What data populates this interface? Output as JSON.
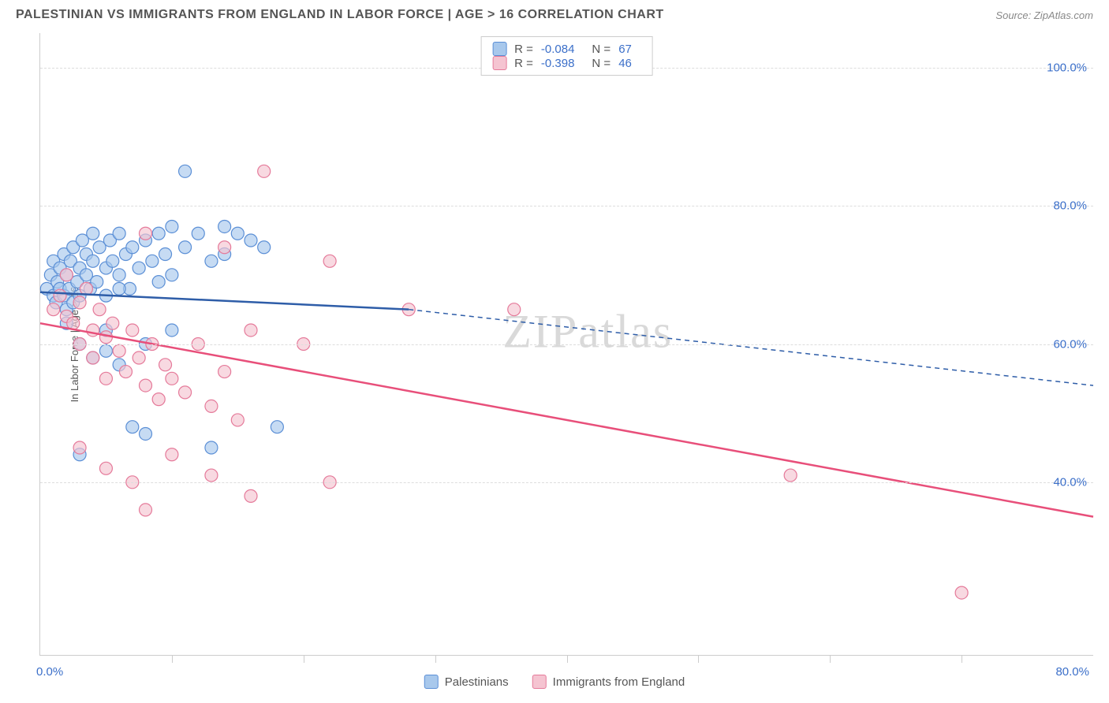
{
  "header": {
    "title": "PALESTINIAN VS IMMIGRANTS FROM ENGLAND IN LABOR FORCE | AGE > 16 CORRELATION CHART",
    "source_label": "Source:",
    "source_name": "ZipAtlas.com"
  },
  "chart": {
    "type": "scatter",
    "y_axis_title": "In Labor Force | Age > 16",
    "xlim": [
      0,
      80
    ],
    "ylim": [
      15,
      105
    ],
    "x_label_min": "0.0%",
    "x_label_max": "80.0%",
    "y_ticks": [
      40,
      60,
      80,
      100
    ],
    "y_tick_labels": [
      "40.0%",
      "60.0%",
      "80.0%",
      "100.0%"
    ],
    "x_ticks": [
      10,
      20,
      30,
      40,
      50,
      60,
      70
    ],
    "background_color": "#ffffff",
    "grid_color": "#dddddd",
    "axis_color": "#cccccc",
    "tick_label_color": "#3b6fc9",
    "watermark_text_a": "ZIP",
    "watermark_text_b": "atlas",
    "series": [
      {
        "name": "Palestinians",
        "marker_fill": "#a8c8ec",
        "marker_stroke": "#5b8fd6",
        "marker_opacity": 0.65,
        "marker_radius": 8,
        "line_color": "#2e5da8",
        "line_width": 2.5,
        "trend_solid": {
          "x1": 0,
          "y1": 67.5,
          "x2": 28,
          "y2": 65
        },
        "trend_dash": {
          "x1": 28,
          "y1": 65,
          "x2": 80,
          "y2": 54
        },
        "stats": {
          "R": "-0.084",
          "N": "67"
        },
        "points": [
          [
            0.5,
            68
          ],
          [
            0.8,
            70
          ],
          [
            1,
            67
          ],
          [
            1,
            72
          ],
          [
            1.2,
            66
          ],
          [
            1.3,
            69
          ],
          [
            1.5,
            71
          ],
          [
            1.5,
            68
          ],
          [
            1.8,
            73
          ],
          [
            1.8,
            67
          ],
          [
            2,
            70
          ],
          [
            2,
            65
          ],
          [
            2.2,
            68
          ],
          [
            2.3,
            72
          ],
          [
            2.5,
            66
          ],
          [
            2.5,
            74
          ],
          [
            2.8,
            69
          ],
          [
            3,
            71
          ],
          [
            3,
            67
          ],
          [
            3.2,
            75
          ],
          [
            3.5,
            70
          ],
          [
            3.5,
            73
          ],
          [
            3.8,
            68
          ],
          [
            4,
            72
          ],
          [
            4,
            76
          ],
          [
            4.3,
            69
          ],
          [
            4.5,
            74
          ],
          [
            5,
            71
          ],
          [
            5,
            67
          ],
          [
            5.3,
            75
          ],
          [
            5.5,
            72
          ],
          [
            6,
            70
          ],
          [
            6,
            76
          ],
          [
            6.5,
            73
          ],
          [
            6.8,
            68
          ],
          [
            7,
            74
          ],
          [
            7.5,
            71
          ],
          [
            8,
            75
          ],
          [
            8.5,
            72
          ],
          [
            9,
            76
          ],
          [
            9.5,
            73
          ],
          [
            10,
            77
          ],
          [
            10,
            70
          ],
          [
            11,
            74
          ],
          [
            12,
            76
          ],
          [
            13,
            72
          ],
          [
            14,
            77
          ],
          [
            15,
            76
          ],
          [
            16,
            75
          ],
          [
            17,
            74
          ],
          [
            2,
            63
          ],
          [
            3,
            60
          ],
          [
            4,
            58
          ],
          [
            5,
            62
          ],
          [
            6,
            57
          ],
          [
            3,
            44
          ],
          [
            5,
            59
          ],
          [
            8,
            60
          ],
          [
            10,
            62
          ],
          [
            7,
            48
          ],
          [
            8,
            47
          ],
          [
            13,
            45
          ],
          [
            18,
            48
          ],
          [
            11,
            85
          ],
          [
            14,
            73
          ],
          [
            6,
            68
          ],
          [
            9,
            69
          ]
        ]
      },
      {
        "name": "Immigrants from England",
        "marker_fill": "#f5c4d1",
        "marker_stroke": "#e57a9a",
        "marker_opacity": 0.65,
        "marker_radius": 8,
        "line_color": "#e84f7a",
        "line_width": 2.5,
        "trend_solid": {
          "x1": 0,
          "y1": 63,
          "x2": 80,
          "y2": 35
        },
        "stats": {
          "R": "-0.398",
          "N": "46"
        },
        "points": [
          [
            1,
            65
          ],
          [
            1.5,
            67
          ],
          [
            2,
            64
          ],
          [
            2,
            70
          ],
          [
            2.5,
            63
          ],
          [
            3,
            66
          ],
          [
            3,
            60
          ],
          [
            3.5,
            68
          ],
          [
            4,
            62
          ],
          [
            4,
            58
          ],
          [
            4.5,
            65
          ],
          [
            5,
            61
          ],
          [
            5,
            55
          ],
          [
            5.5,
            63
          ],
          [
            6,
            59
          ],
          [
            6.5,
            56
          ],
          [
            7,
            62
          ],
          [
            7.5,
            58
          ],
          [
            8,
            54
          ],
          [
            8.5,
            60
          ],
          [
            9,
            52
          ],
          [
            9.5,
            57
          ],
          [
            10,
            55
          ],
          [
            11,
            53
          ],
          [
            12,
            60
          ],
          [
            13,
            51
          ],
          [
            14,
            56
          ],
          [
            15,
            49
          ],
          [
            16,
            62
          ],
          [
            8,
            76
          ],
          [
            3,
            45
          ],
          [
            5,
            42
          ],
          [
            7,
            40
          ],
          [
            10,
            44
          ],
          [
            13,
            41
          ],
          [
            16,
            38
          ],
          [
            20,
            60
          ],
          [
            22,
            40
          ],
          [
            22,
            72
          ],
          [
            28,
            65
          ],
          [
            17,
            85
          ],
          [
            8,
            36
          ],
          [
            57,
            41
          ],
          [
            36,
            65
          ],
          [
            70,
            24
          ],
          [
            14,
            74
          ]
        ]
      }
    ],
    "legend": {
      "swatch_border_radius": 3
    }
  }
}
